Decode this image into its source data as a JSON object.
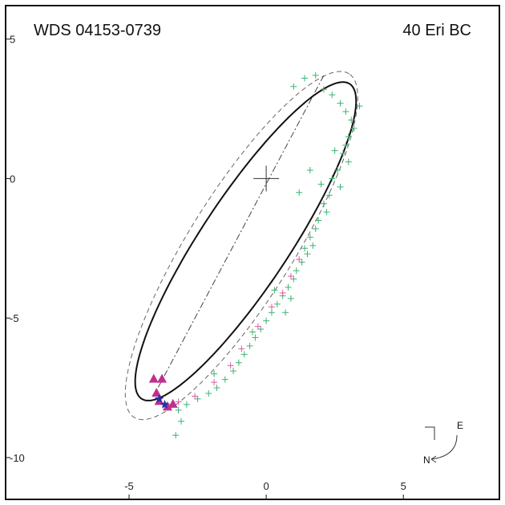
{
  "chart_data": {
    "type": "scatter",
    "title_left": "WDS 04153-0739",
    "title_right": "40 Eri BC",
    "xlabel": "",
    "ylabel": "",
    "xlim": [
      -9.5,
      8.5
    ],
    "ylim": [
      -11.5,
      6.2
    ],
    "x_ticks": [
      -5,
      0,
      5
    ],
    "y_ticks": [
      5,
      0,
      -5,
      -10
    ],
    "x_tick_labels": [
      "-5",
      "0",
      "5"
    ],
    "y_tick_labels": [
      "5",
      "0",
      "-5",
      "-10"
    ],
    "grid": false,
    "compass": {
      "east": "E",
      "north": "N"
    },
    "orbit_ellipse": {
      "center": [
        -0.75,
        -2.25
      ],
      "semi_major": 6.8,
      "semi_minor": 1.6,
      "angle_deg": 56.0
    },
    "prev_orbit_ellipse": {
      "center": [
        -0.9,
        -2.4
      ],
      "semi_major": 7.3,
      "semi_minor": 1.9,
      "angle_deg": 57.5
    },
    "line_of_nodes": [
      [
        2.1,
        3.7
      ],
      [
        -4.0,
        -7.6
      ]
    ],
    "primary_marker": [
      0,
      0
    ],
    "series": [
      {
        "marker": "plus",
        "color": "#3cb371",
        "points": [
          [
            1.4,
            3.6
          ],
          [
            1.8,
            3.7
          ],
          [
            1.0,
            3.3
          ],
          [
            2.1,
            3.2
          ],
          [
            2.4,
            3.0
          ],
          [
            2.7,
            2.7
          ],
          [
            2.9,
            2.4
          ],
          [
            3.1,
            2.1
          ],
          [
            3.2,
            1.8
          ],
          [
            3.0,
            1.5
          ],
          [
            2.9,
            1.2
          ],
          [
            2.8,
            0.9
          ],
          [
            3.0,
            0.6
          ],
          [
            2.6,
            0.3
          ],
          [
            2.4,
            0.0
          ],
          [
            2.7,
            -0.3
          ],
          [
            2.3,
            -0.6
          ],
          [
            2.1,
            -0.9
          ],
          [
            2.2,
            -1.2
          ],
          [
            1.9,
            -1.5
          ],
          [
            1.8,
            -1.8
          ],
          [
            1.6,
            -2.1
          ],
          [
            1.7,
            -2.4
          ],
          [
            1.5,
            -2.7
          ],
          [
            1.3,
            -3.0
          ],
          [
            1.1,
            -3.3
          ],
          [
            1.0,
            -3.6
          ],
          [
            0.8,
            -3.9
          ],
          [
            0.6,
            -4.2
          ],
          [
            0.4,
            -4.5
          ],
          [
            0.2,
            -4.8
          ],
          [
            0.0,
            -5.1
          ],
          [
            -0.2,
            -5.4
          ],
          [
            -0.4,
            -5.7
          ],
          [
            -0.6,
            -6.0
          ],
          [
            -0.8,
            -6.3
          ],
          [
            -1.0,
            -6.6
          ],
          [
            -1.2,
            -6.9
          ],
          [
            -1.5,
            -7.2
          ],
          [
            -1.8,
            -7.5
          ],
          [
            -2.1,
            -7.7
          ],
          [
            -2.5,
            -7.9
          ],
          [
            -2.9,
            -8.1
          ],
          [
            -3.2,
            -8.3
          ],
          [
            -3.6,
            -8.2
          ],
          [
            -3.1,
            -8.7
          ],
          [
            -3.3,
            -9.2
          ],
          [
            1.6,
            0.3
          ],
          [
            1.2,
            -0.5
          ],
          [
            3.4,
            2.6
          ],
          [
            0.3,
            -4.0
          ],
          [
            0.7,
            -4.8
          ],
          [
            -0.5,
            -5.5
          ],
          [
            -1.9,
            -7.0
          ],
          [
            2.5,
            1.0
          ],
          [
            1.4,
            -2.5
          ],
          [
            2.0,
            -0.2
          ],
          [
            0.9,
            -4.3
          ]
        ]
      },
      {
        "marker": "plus",
        "color": "#e05aa0",
        "points": [
          [
            1.2,
            -2.9
          ],
          [
            0.9,
            -3.5
          ],
          [
            0.6,
            -4.1
          ],
          [
            0.2,
            -4.6
          ],
          [
            -0.3,
            -5.3
          ],
          [
            -0.9,
            -6.1
          ],
          [
            -1.3,
            -6.7
          ],
          [
            -1.9,
            -7.3
          ],
          [
            -2.6,
            -7.8
          ],
          [
            -3.2,
            -8.0
          ],
          [
            -3.6,
            -8.1
          ]
        ]
      },
      {
        "marker": "triangle",
        "color": "#c0308f",
        "points": [
          [
            -4.1,
            -7.2
          ],
          [
            -3.8,
            -7.2
          ],
          [
            -4.0,
            -7.7
          ],
          [
            -3.9,
            -8.0
          ],
          [
            -3.6,
            -8.2
          ],
          [
            -3.4,
            -8.1
          ]
        ]
      },
      {
        "marker": "star",
        "color": "#2233aa",
        "points": [
          [
            -3.9,
            -7.9
          ],
          [
            -3.7,
            -8.1
          ]
        ]
      }
    ]
  }
}
